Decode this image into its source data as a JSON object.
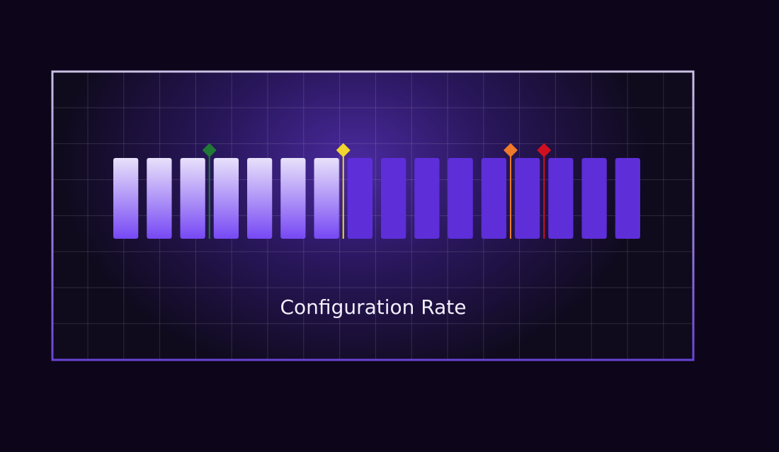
{
  "meter": {
    "label": "Configuration Rate",
    "segments": 16,
    "filled": 7,
    "filled_colors": [
      "#e8e1fa",
      "#7748f4"
    ],
    "empty_color": "#5e2ed9",
    "markers": [
      {
        "position": 3,
        "color": "#1f7a36"
      },
      {
        "position": 7,
        "color": "#f2d62e"
      },
      {
        "position": 12,
        "color": "#ee7a2a"
      },
      {
        "position": 13,
        "color": "#d0101e"
      }
    ]
  }
}
